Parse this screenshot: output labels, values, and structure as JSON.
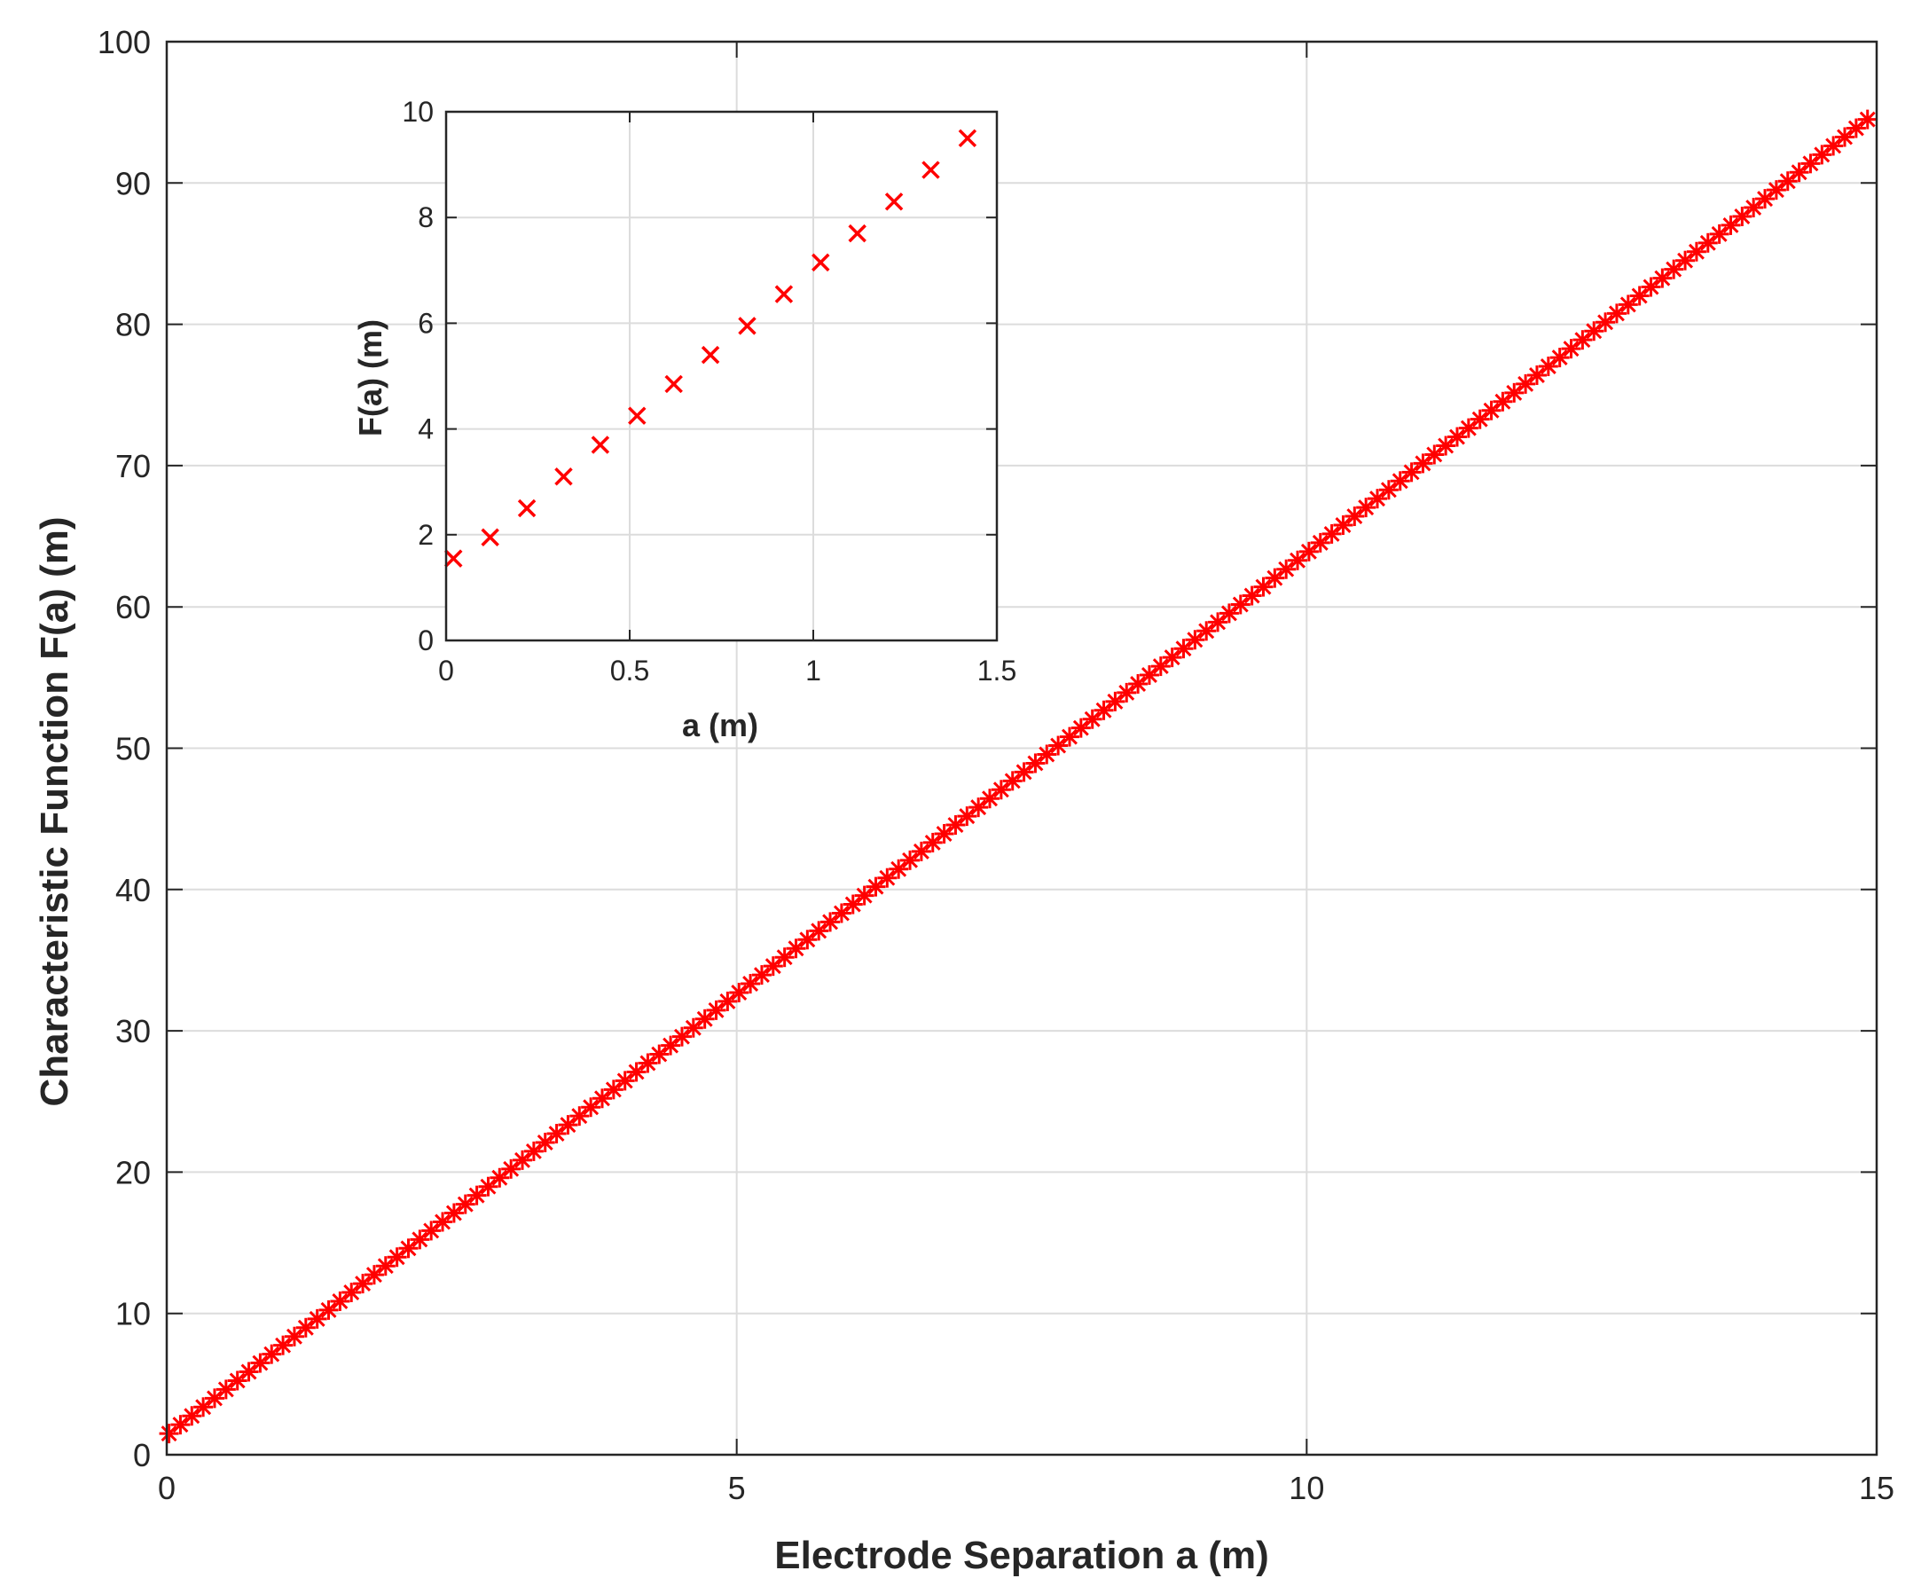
{
  "chart_data": [
    {
      "id": "main",
      "type": "scatter",
      "marker": "asterisk",
      "xlabel": "Electrode Separation a (m)",
      "ylabel": "Characteristic Function F(a) (m)",
      "xlim": [
        0,
        15
      ],
      "ylim": [
        0,
        100
      ],
      "xticks": [
        0,
        5,
        10,
        15
      ],
      "yticks": [
        0,
        10,
        20,
        30,
        40,
        50,
        60,
        70,
        80,
        90,
        100
      ],
      "grid": true,
      "color": "#ff0000",
      "series": [
        {
          "x_range": [
            0.02,
            14.92
          ],
          "x_step": 0.1,
          "y_relation": "approximately linear, y(0.02) = 1.5, y(14.92) = 94.5",
          "y_start": 1.5,
          "y_end": 94.5
        }
      ]
    },
    {
      "id": "inset",
      "type": "scatter",
      "marker": "x",
      "xlabel": "a (m)",
      "ylabel": "F(a) (m)",
      "xlim": [
        0,
        1.5
      ],
      "ylim": [
        0,
        10
      ],
      "xticks": [
        0,
        0.5,
        1,
        1.5
      ],
      "yticks": [
        0,
        2,
        4,
        6,
        8,
        10
      ],
      "grid": true,
      "color": "#ff0000",
      "series": [
        {
          "x": [
            0.02,
            0.12,
            0.22,
            0.32,
            0.42,
            0.52,
            0.62,
            0.72,
            0.82,
            0.92,
            1.02,
            1.12,
            1.22,
            1.32,
            1.42
          ],
          "y": [
            1.55,
            1.95,
            2.5,
            3.1,
            3.7,
            4.25,
            4.85,
            5.4,
            5.95,
            6.55,
            7.15,
            7.7,
            8.3,
            8.9,
            9.5
          ]
        }
      ]
    }
  ]
}
